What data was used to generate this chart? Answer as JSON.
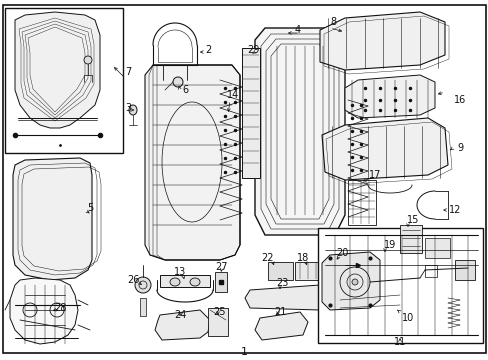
{
  "background_color": "#ffffff",
  "border_color": "#000000",
  "text_color": "#000000",
  "figsize": [
    4.89,
    3.6
  ],
  "dpi": 100,
  "img_data": null
}
